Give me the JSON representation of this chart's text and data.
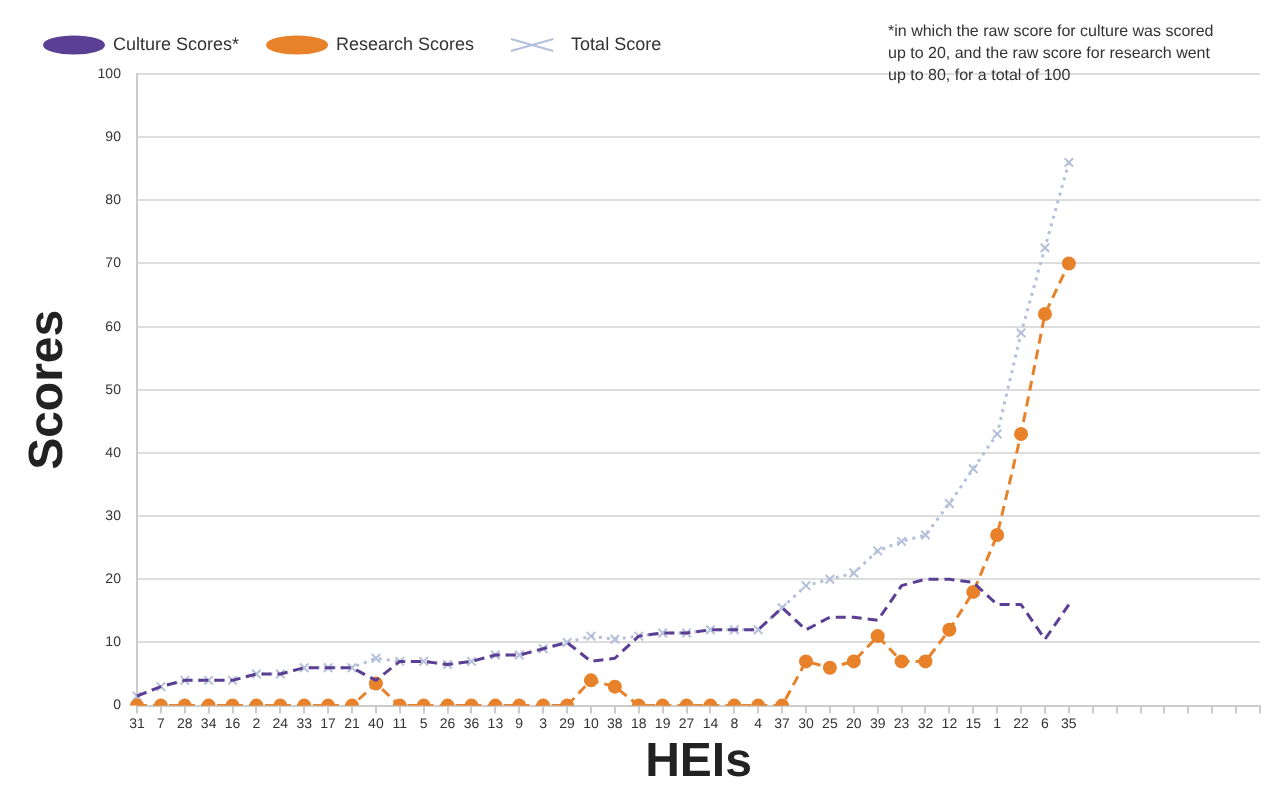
{
  "chart_data": {
    "type": "line",
    "xlabel": "HEIs",
    "ylabel": "Scores",
    "annotations": [
      "*in which the raw score for culture was scored up to 20, and the raw score for research went up to 80, for a total of 100"
    ],
    "categories": [
      "31",
      "7",
      "28",
      "34",
      "16",
      "2",
      "24",
      "33",
      "17",
      "21",
      "40",
      "11",
      "5",
      "26",
      "36",
      "13",
      "9",
      "3",
      "29",
      "10",
      "38",
      "18",
      "19",
      "27",
      "14",
      "8",
      "4",
      "37",
      "30",
      "25",
      "20",
      "39",
      "23",
      "32",
      "12",
      "15",
      "1",
      "22",
      "6",
      "35",
      null,
      null,
      null,
      null,
      null,
      null,
      null,
      null
    ],
    "series": [
      {
        "name": "Culture Scores*",
        "color": "#5b3f94",
        "line_style": "dashed",
        "marker": "none",
        "values": [
          1.5,
          3,
          4,
          4,
          4,
          5,
          5,
          6,
          6,
          6,
          4,
          7,
          7,
          6.5,
          7,
          8,
          8,
          9,
          10,
          7,
          7.5,
          11,
          11.5,
          11.5,
          12,
          12,
          12,
          15.5,
          12,
          14,
          14,
          13.5,
          19,
          20,
          20,
          19.5,
          16,
          16,
          10.5,
          16,
          null,
          null,
          null,
          null,
          null,
          null,
          null,
          null
        ]
      },
      {
        "name": "Research Scores",
        "color": "#e8822a",
        "line_style": "dashed",
        "marker": "circle",
        "values": [
          0,
          0,
          0,
          0,
          0,
          0,
          0,
          0,
          0,
          0,
          3.5,
          0,
          0,
          0,
          0,
          0,
          0,
          0,
          0,
          4,
          3,
          0,
          0,
          0,
          0,
          0,
          0,
          0,
          7,
          6,
          7,
          11,
          7,
          7,
          12,
          18,
          27,
          43,
          62,
          70,
          null,
          null,
          null,
          null,
          null,
          null,
          null,
          null
        ]
      },
      {
        "name": "Total Score",
        "color": "#b4c0da",
        "line_style": "dotted",
        "marker": "cross",
        "values": [
          1.5,
          3,
          4,
          4,
          4,
          5,
          5,
          6,
          6,
          6,
          7.5,
          7,
          7,
          6.5,
          7,
          8,
          8,
          9,
          10,
          11,
          10.5,
          11,
          11.5,
          11.5,
          12,
          12,
          12,
          15.5,
          19,
          20,
          21,
          24.5,
          26,
          27,
          32,
          37.5,
          43,
          59,
          72.5,
          86,
          null,
          null,
          null,
          null,
          null,
          null,
          null,
          null
        ]
      }
    ],
    "ylim": [
      0,
      100
    ],
    "yticks": [
      0,
      10,
      20,
      30,
      40,
      50,
      60,
      70,
      80,
      90,
      100
    ],
    "grid": "y",
    "legend": "top left"
  }
}
